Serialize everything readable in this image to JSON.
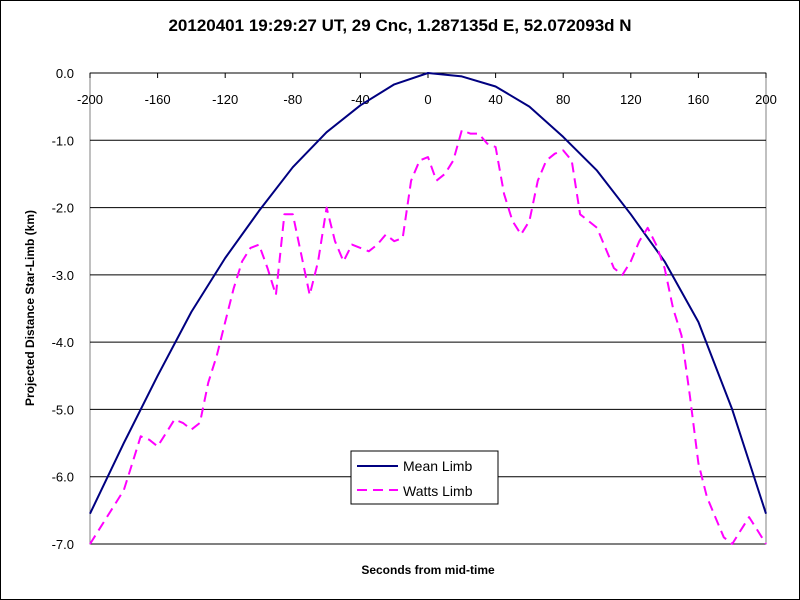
{
  "chart_data": {
    "type": "line",
    "title": "20120401 19:29:27 UT, 29 Cnc, 1.287135d E, 52.072093d N",
    "xlabel": "Seconds from mid-time",
    "ylabel": "Projected Distance Star-Limb (km)",
    "xlim": [
      -200,
      200
    ],
    "ylim": [
      -7.0,
      0.0
    ],
    "x_ticks": [
      -200,
      -160,
      -120,
      -80,
      -40,
      0,
      40,
      80,
      120,
      160,
      200
    ],
    "x_tick_labels": [
      "-200",
      "-160",
      "-120",
      "-80",
      "-40",
      "0",
      "40",
      "80",
      "120",
      "160",
      "200"
    ],
    "y_ticks": [
      0,
      -1,
      -2,
      -3,
      -4,
      -5,
      -6,
      -7
    ],
    "y_tick_labels": [
      "0.0",
      "-1.0",
      "-2.0",
      "-3.0",
      "-4.0",
      "-5.0",
      "-6.0",
      "-7.0"
    ],
    "grid": "horizontal",
    "x_axis_position": "top",
    "legend": "bottom-center",
    "series": [
      {
        "name": "Mean Limb",
        "color": "#000080",
        "style": "solid",
        "x": [
          -200,
          -180,
          -160,
          -140,
          -120,
          -100,
          -80,
          -60,
          -40,
          -20,
          0,
          20,
          40,
          60,
          80,
          100,
          120,
          140,
          160,
          180,
          200
        ],
        "y": [
          -6.55,
          -5.5,
          -4.5,
          -3.55,
          -2.75,
          -2.05,
          -1.4,
          -0.88,
          -0.48,
          -0.17,
          0.0,
          -0.05,
          -0.2,
          -0.5,
          -0.95,
          -1.45,
          -2.1,
          -2.8,
          -3.7,
          -5.0,
          -6.55
        ]
      },
      {
        "name": "Watts Limb",
        "color": "#ff00ff",
        "style": "dashed",
        "x": [
          -200,
          -190,
          -180,
          -175,
          -170,
          -165,
          -160,
          -155,
          -150,
          -145,
          -140,
          -135,
          -130,
          -125,
          -120,
          -115,
          -110,
          -105,
          -100,
          -95,
          -90,
          -85,
          -80,
          -75,
          -70,
          -65,
          -60,
          -55,
          -50,
          -45,
          -40,
          -35,
          -30,
          -25,
          -20,
          -15,
          -10,
          -5,
          0,
          5,
          10,
          15,
          20,
          25,
          30,
          35,
          40,
          45,
          50,
          55,
          60,
          65,
          70,
          75,
          80,
          85,
          90,
          95,
          100,
          105,
          110,
          115,
          120,
          125,
          130,
          135,
          140,
          145,
          150,
          155,
          160,
          165,
          170,
          175,
          180,
          185,
          190,
          195,
          200
        ],
        "y": [
          -7.0,
          -6.6,
          -6.2,
          -5.8,
          -5.4,
          -5.45,
          -5.55,
          -5.35,
          -5.15,
          -5.2,
          -5.3,
          -5.2,
          -4.6,
          -4.2,
          -3.7,
          -3.2,
          -2.8,
          -2.6,
          -2.55,
          -2.9,
          -3.3,
          -2.1,
          -2.1,
          -2.7,
          -3.3,
          -2.8,
          -2.0,
          -2.5,
          -2.8,
          -2.55,
          -2.6,
          -2.65,
          -2.55,
          -2.4,
          -2.5,
          -2.45,
          -1.6,
          -1.3,
          -1.25,
          -1.6,
          -1.5,
          -1.3,
          -0.85,
          -0.9,
          -0.9,
          -1.05,
          -1.1,
          -1.8,
          -2.2,
          -2.4,
          -2.2,
          -1.6,
          -1.3,
          -1.2,
          -1.15,
          -1.3,
          -2.1,
          -2.2,
          -2.3,
          -2.6,
          -2.9,
          -3.0,
          -2.8,
          -2.5,
          -2.3,
          -2.55,
          -2.9,
          -3.5,
          -3.9,
          -4.8,
          -5.8,
          -6.3,
          -6.6,
          -6.9,
          -7.0,
          -6.8,
          -6.6,
          -6.8,
          -7.0
        ]
      }
    ]
  }
}
